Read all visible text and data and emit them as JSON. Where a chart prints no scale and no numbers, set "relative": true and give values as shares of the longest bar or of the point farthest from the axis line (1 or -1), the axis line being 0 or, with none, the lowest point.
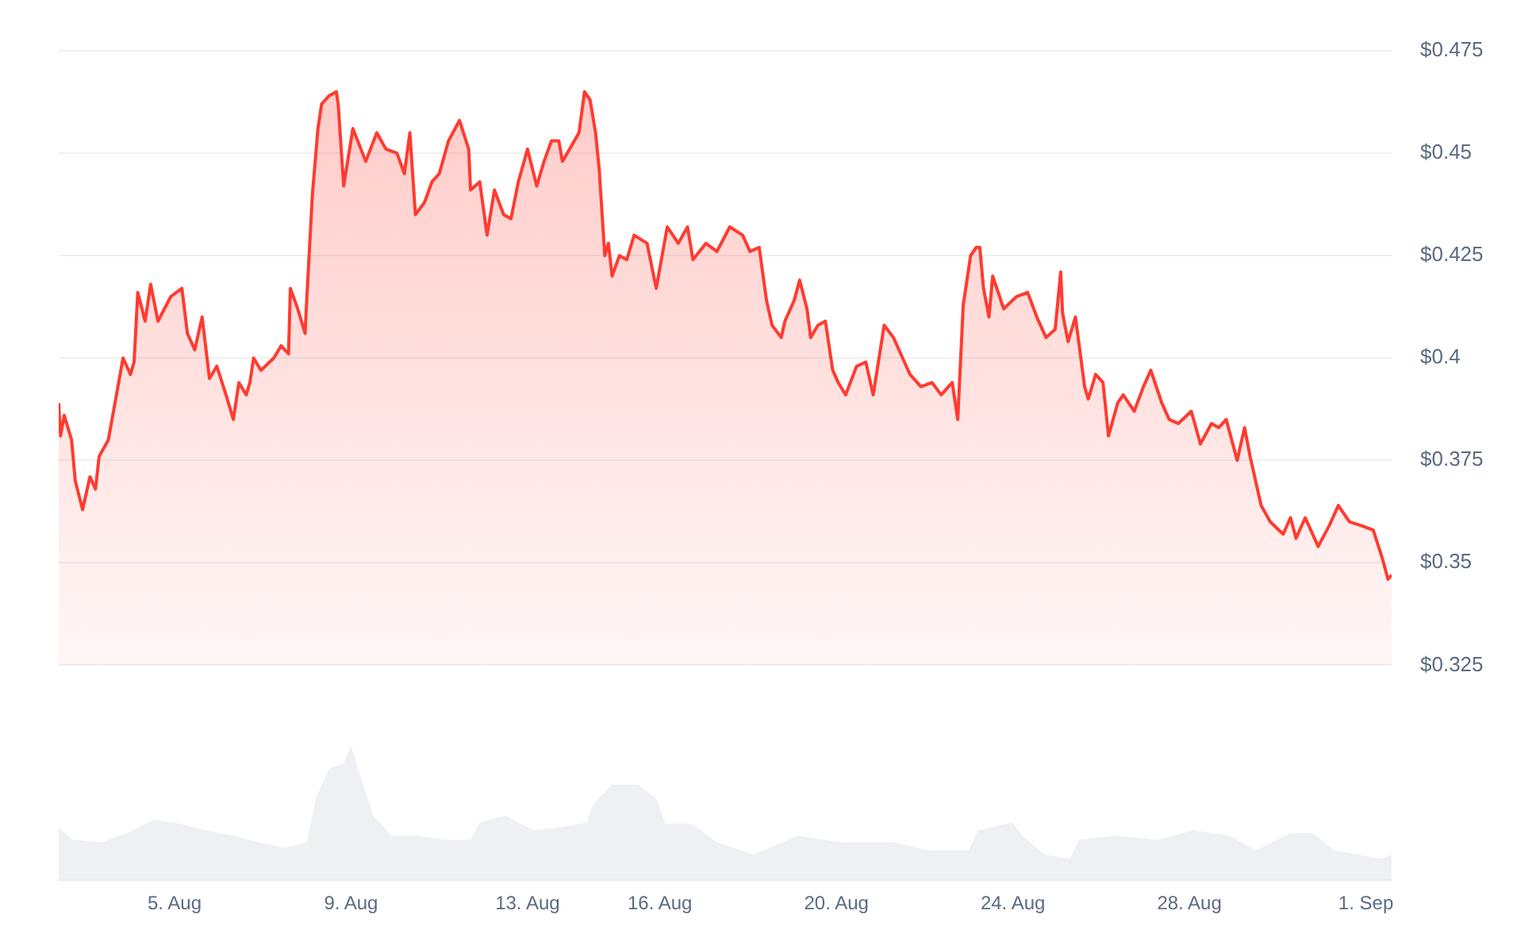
{
  "chart_data": [
    {
      "type": "area",
      "color": "#ff3b30",
      "x": [
        "--08-02T09:00",
        "--08-02T10:00",
        "--08-02T12:00",
        "--08-02T16:00",
        "--08-02T18:00",
        "--08-02T22:00",
        "--08-03T02:00",
        "--08-03T05:00",
        "--08-03T07:00",
        "--08-03T12:00",
        "--08-03T16:00",
        "--08-03T20:00",
        "--08-04T00:00",
        "--08-04T02:00",
        "--08-04T04:00",
        "--08-04T08:00",
        "--08-04T11:00",
        "--08-04T15:00",
        "--08-04T22:00",
        "--08-05T04:00",
        "--08-05T07:00",
        "--08-05T11:00",
        "--08-05T15:00",
        "--08-05T19:00",
        "--08-05T23:00",
        "--08-06T04:00",
        "--08-06T08:00",
        "--08-06T11:00",
        "--08-06T15:00",
        "--08-06T17:00",
        "--08-06T19:00",
        "--08-06T23:00",
        "--08-07T06:00",
        "--08-07T10:00",
        "--08-07T14:00",
        "--08-07T15:00",
        "--08-07T19:00",
        "--08-07T23:00",
        "--08-08T00:00",
        "--08-08T03:00",
        "--08-08T06:00",
        "--08-08T08:00",
        "--08-08T12:00",
        "--08-08T16:00",
        "--08-08T17:00",
        "--08-08T20:00",
        "--08-09T01:00",
        "--08-09T08:00",
        "--08-09T14:00",
        "--08-09T19:00",
        "--08-10T01:00",
        "--08-10T05:00",
        "--08-10T08:00",
        "--08-10T11:00",
        "--08-10T16:00",
        "--08-10T20:00",
        "--08-11T00:00",
        "--08-11T05:00",
        "--08-11T11:00",
        "--08-11T16:00",
        "--08-11T17:00",
        "--08-11T22:00",
        "--08-12T02:00",
        "--08-12T06:00",
        "--08-12T11:00",
        "--08-12T15:00",
        "--08-12T19:00",
        "--08-13T00:00",
        "--08-13T05:00",
        "--08-13T09:00",
        "--08-13T13:00",
        "--08-13T17:00",
        "--08-13T19:00",
        "--08-14T04:00",
        "--08-14T07:00",
        "--08-14T10:00",
        "--08-14T13:00",
        "--08-14T15:00",
        "--08-14T18:00",
        "--08-14T20:00",
        "--08-14T22:00",
        "--08-15T02:00",
        "--08-15T06:00",
        "--08-15T10:00",
        "--08-15T17:00",
        "--08-15T22:00",
        "--08-16T04:00",
        "--08-16T10:00",
        "--08-16T15:00",
        "--08-16T18:00",
        "--08-17T01:00",
        "--08-17T07:00",
        "--08-17T14:00",
        "--08-17T21:00",
        "--08-18T01:00",
        "--08-18T06:00",
        "--08-18T10:00",
        "--08-18T13:00",
        "--08-18T18:00",
        "--08-18T20:00",
        "--08-19T01:00",
        "--08-19T04:00",
        "--08-19T08:00",
        "--08-19T10:00",
        "--08-19T14:00",
        "--08-19T18:00",
        "--08-19T22:00",
        "--08-20T01:00",
        "--08-20T05:00",
        "--08-20T11:00",
        "--08-20T16:00",
        "--08-20T20:00",
        "--08-21T02:00",
        "--08-21T07:00",
        "--08-21T11:00",
        "--08-21T16:00",
        "--08-21T22:00",
        "--08-22T04:00",
        "--08-22T09:00",
        "--08-22T15:00",
        "--08-22T18:00",
        "--08-22T21:00",
        "--08-23T01:00",
        "--08-23T04:00",
        "--08-23T06:00",
        "--08-23T08:00",
        "--08-23T11:00",
        "--08-23T13:00",
        "--08-23T19:00",
        "--08-24T02:00",
        "--08-24T08:00",
        "--08-24T13:00",
        "--08-24T18:00",
        "--08-24T23:00",
        "--08-25T02:00",
        "--08-25T03:00",
        "--08-25T06:00",
        "--08-25T10:00",
        "--08-25T15:00",
        "--08-25T17:00",
        "--08-25T21:00",
        "--08-26T01:00",
        "--08-26T04:00",
        "--08-26T09:00",
        "--08-26T12:00",
        "--08-26T18:00",
        "--08-26T23:00",
        "--08-27T03:00",
        "--08-27T09:00",
        "--08-27T13:00",
        "--08-27T18:00",
        "--08-28T01:00",
        "--08-28T06:00",
        "--08-28T12:00",
        "--08-28T16:00",
        "--08-28T20:00",
        "--08-29T02:00",
        "--08-29T06:00",
        "--08-29T09:00",
        "--08-29T15:00",
        "--08-29T20:00",
        "--08-30T03:00",
        "--08-30T07:00",
        "--08-30T10:00",
        "--08-30T15:00",
        "--08-30T22:00",
        "--08-31T04:00",
        "--08-31T09:00",
        "--08-31T15:00",
        "--08-31T22:00",
        "--09-01T04:00",
        "--09-01T09:00",
        "--09-01T12:00",
        "--09-01T14:00"
      ],
      "values": [
        0.389,
        0.381,
        0.386,
        0.38,
        0.37,
        0.363,
        0.371,
        0.368,
        0.376,
        0.38,
        0.39,
        0.4,
        0.396,
        0.399,
        0.416,
        0.409,
        0.418,
        0.409,
        0.415,
        0.417,
        0.406,
        0.402,
        0.41,
        0.395,
        0.398,
        0.391,
        0.385,
        0.394,
        0.391,
        0.394,
        0.4,
        0.397,
        0.4,
        0.403,
        0.401,
        0.417,
        0.412,
        0.406,
        0.415,
        0.44,
        0.456,
        0.462,
        0.464,
        0.465,
        0.462,
        0.442,
        0.456,
        0.448,
        0.455,
        0.451,
        0.45,
        0.445,
        0.455,
        0.435,
        0.438,
        0.443,
        0.445,
        0.453,
        0.458,
        0.451,
        0.441,
        0.443,
        0.43,
        0.441,
        0.435,
        0.434,
        0.443,
        0.451,
        0.442,
        0.448,
        0.453,
        0.453,
        0.448,
        0.455,
        0.465,
        0.463,
        0.455,
        0.446,
        0.425,
        0.428,
        0.42,
        0.425,
        0.424,
        0.43,
        0.428,
        0.417,
        0.432,
        0.428,
        0.432,
        0.424,
        0.428,
        0.426,
        0.432,
        0.43,
        0.426,
        0.427,
        0.414,
        0.408,
        0.405,
        0.409,
        0.414,
        0.419,
        0.412,
        0.405,
        0.408,
        0.409,
        0.397,
        0.394,
        0.391,
        0.398,
        0.399,
        0.391,
        0.408,
        0.405,
        0.401,
        0.396,
        0.393,
        0.394,
        0.391,
        0.394,
        0.385,
        0.413,
        0.425,
        0.427,
        0.427,
        0.417,
        0.41,
        0.42,
        0.412,
        0.415,
        0.416,
        0.41,
        0.405,
        0.407,
        0.421,
        0.411,
        0.404,
        0.41,
        0.393,
        0.39,
        0.396,
        0.394,
        0.381,
        0.389,
        0.391,
        0.387,
        0.393,
        0.397,
        0.389,
        0.385,
        0.384,
        0.387,
        0.379,
        0.384,
        0.383,
        0.385,
        0.375,
        0.383,
        0.376,
        0.364,
        0.36,
        0.357,
        0.361,
        0.356,
        0.361,
        0.354,
        0.359,
        0.364,
        0.36,
        0.359,
        0.358,
        0.351,
        0.346,
        0.347
      ],
      "ylim": [
        0.325,
        0.475
      ],
      "yticks": [
        {
          "value": 0.325,
          "label": "$0.325"
        },
        {
          "value": 0.35,
          "label": "$0.35"
        },
        {
          "value": 0.375,
          "label": "$0.375"
        },
        {
          "value": 0.4,
          "label": "$0.4"
        },
        {
          "value": 0.425,
          "label": "$0.425"
        },
        {
          "value": 0.45,
          "label": "$0.45"
        },
        {
          "value": 0.475,
          "label": "$0.475"
        }
      ],
      "xlim": [
        "--08-02T09:00",
        "--09-01T14:00"
      ],
      "grid": "y",
      "legend": false,
      "tick_labels": "y"
    },
    {
      "type": "area",
      "color": "#eef0f3",
      "relative": true,
      "x": [
        "--08-02T09:00",
        "--08-02T17:00",
        "--08-03T08:00",
        "--08-03T22:00",
        "--08-04T13:00",
        "--08-05T03:00",
        "--08-05T17:00",
        "--08-06T08:00",
        "--08-06T22:00",
        "--08-07T12:00",
        "--08-08T00:00",
        "--08-08T05:00",
        "--08-08T12:00",
        "--08-08T20:00",
        "--08-09T00:00",
        "--08-09T05:00",
        "--08-09T12:00",
        "--08-09T22:00",
        "--08-10T12:00",
        "--08-11T03:00",
        "--08-11T17:00",
        "--08-11T22:00",
        "--08-12T12:00",
        "--08-13T03:00",
        "--08-13T17:00",
        "--08-14T08:00",
        "--08-14T12:00",
        "--08-14T22:00",
        "--08-15T12:00",
        "--08-15T22:00",
        "--08-16T03:00",
        "--08-16T17:00",
        "--08-17T07:00",
        "--08-18T03:00",
        "--08-19T03:00",
        "--08-20T03:00",
        "--08-21T07:00",
        "--08-22T03:00",
        "--08-23T00:00",
        "--08-23T05:00",
        "--08-24T00:00",
        "--08-24T05:00",
        "--08-24T17:00",
        "--08-25T07:00",
        "--08-25T12:00",
        "--08-26T07:00",
        "--08-27T07:00",
        "--08-28T02:00",
        "--08-28T22:00",
        "--08-29T12:00",
        "--08-30T07:00",
        "--08-30T19:00",
        "--08-31T07:00",
        "--09-01T08:00",
        "--09-01T14:00"
      ],
      "values": [
        0.39,
        0.3,
        0.28,
        0.35,
        0.45,
        0.42,
        0.37,
        0.33,
        0.28,
        0.24,
        0.28,
        0.61,
        0.83,
        0.87,
        1.0,
        0.78,
        0.48,
        0.33,
        0.33,
        0.3,
        0.3,
        0.43,
        0.48,
        0.37,
        0.39,
        0.43,
        0.57,
        0.71,
        0.71,
        0.61,
        0.42,
        0.42,
        0.28,
        0.19,
        0.33,
        0.28,
        0.28,
        0.22,
        0.22,
        0.37,
        0.43,
        0.33,
        0.19,
        0.16,
        0.3,
        0.33,
        0.3,
        0.37,
        0.33,
        0.22,
        0.35,
        0.35,
        0.22,
        0.16,
        0.19
      ],
      "xlim": [
        "--08-02T09:00",
        "--09-01T14:00"
      ],
      "xticks": [
        {
          "value": "--08-05",
          "label": "5. Aug"
        },
        {
          "value": "--08-09",
          "label": "9. Aug"
        },
        {
          "value": "--08-13",
          "label": "13. Aug"
        },
        {
          "value": "--08-16",
          "label": "16. Aug"
        },
        {
          "value": "--08-20",
          "label": "20. Aug"
        },
        {
          "value": "--08-24",
          "label": "24. Aug"
        },
        {
          "value": "--08-28",
          "label": "28. Aug"
        },
        {
          "value": "--09-01",
          "label": "1. Sep"
        }
      ],
      "grid": false,
      "legend": false,
      "tick_labels": "x"
    }
  ]
}
